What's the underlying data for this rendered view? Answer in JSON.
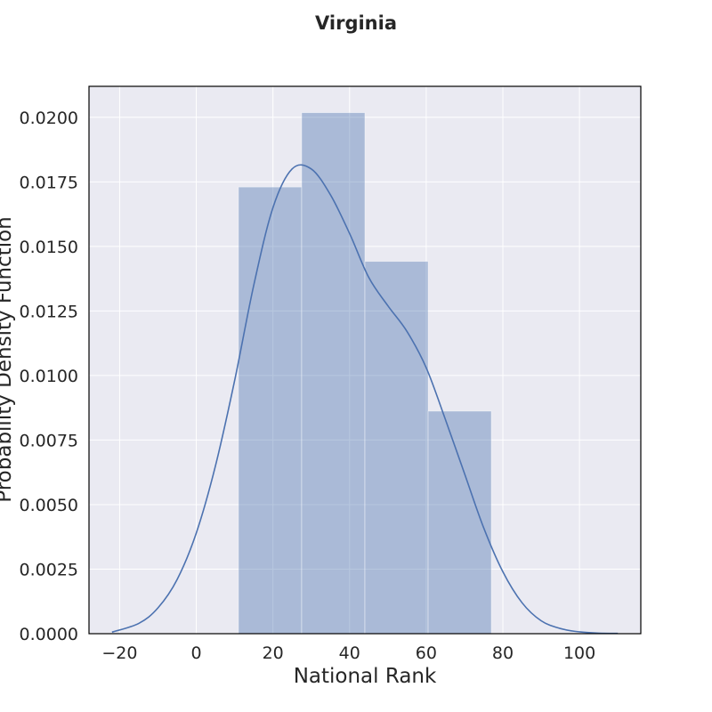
{
  "chart_data": {
    "type": "bar",
    "title": "Virginia",
    "xlabel": "National Rank",
    "ylabel": "Probability Density Function",
    "xlim": [
      -28,
      116
    ],
    "ylim": [
      0,
      0.0212
    ],
    "x_ticks": [
      -20,
      0,
      20,
      40,
      60,
      80,
      100
    ],
    "x_tick_labels": [
      "−20",
      "0",
      "20",
      "40",
      "60",
      "80",
      "100"
    ],
    "y_ticks": [
      0,
      0.0025,
      0.005,
      0.0075,
      0.01,
      0.0125,
      0.015,
      0.0175,
      0.02
    ],
    "y_tick_labels": [
      "0.0000",
      "0.0025",
      "0.0050",
      "0.0075",
      "0.0100",
      "0.0125",
      "0.0150",
      "0.0175",
      "0.0200"
    ],
    "grid": true,
    "histogram": {
      "bins": [
        {
          "x0": 11,
          "x1": 27.5,
          "density": 0.0173
        },
        {
          "x0": 27.5,
          "x1": 44,
          "density": 0.02018
        },
        {
          "x0": 44,
          "x1": 60.5,
          "density": 0.01442
        },
        {
          "x0": 60.5,
          "x1": 77,
          "density": 0.00862
        }
      ],
      "color": "#4C72B0"
    },
    "kde": {
      "x": [
        -22,
        -15,
        -10,
        -5,
        0,
        5,
        10,
        15,
        20,
        25,
        30,
        35,
        40,
        45,
        50,
        55,
        60,
        65,
        70,
        75,
        80,
        85,
        90,
        95,
        100,
        105,
        110
      ],
      "y": [
        6e-05,
        0.0004,
        0.001,
        0.0021,
        0.0039,
        0.0065,
        0.0098,
        0.0135,
        0.0165,
        0.018,
        0.018,
        0.017,
        0.0155,
        0.0138,
        0.0127,
        0.0117,
        0.0103,
        0.0083,
        0.0062,
        0.0041,
        0.0024,
        0.0012,
        0.0005,
        0.0002,
        7e-05,
        2e-05,
        1e-05
      ],
      "color": "#4C72B0"
    },
    "colors": {
      "plot_background": "#EAEAF2",
      "grid": "#FFFFFF",
      "frame": "#000000"
    }
  }
}
